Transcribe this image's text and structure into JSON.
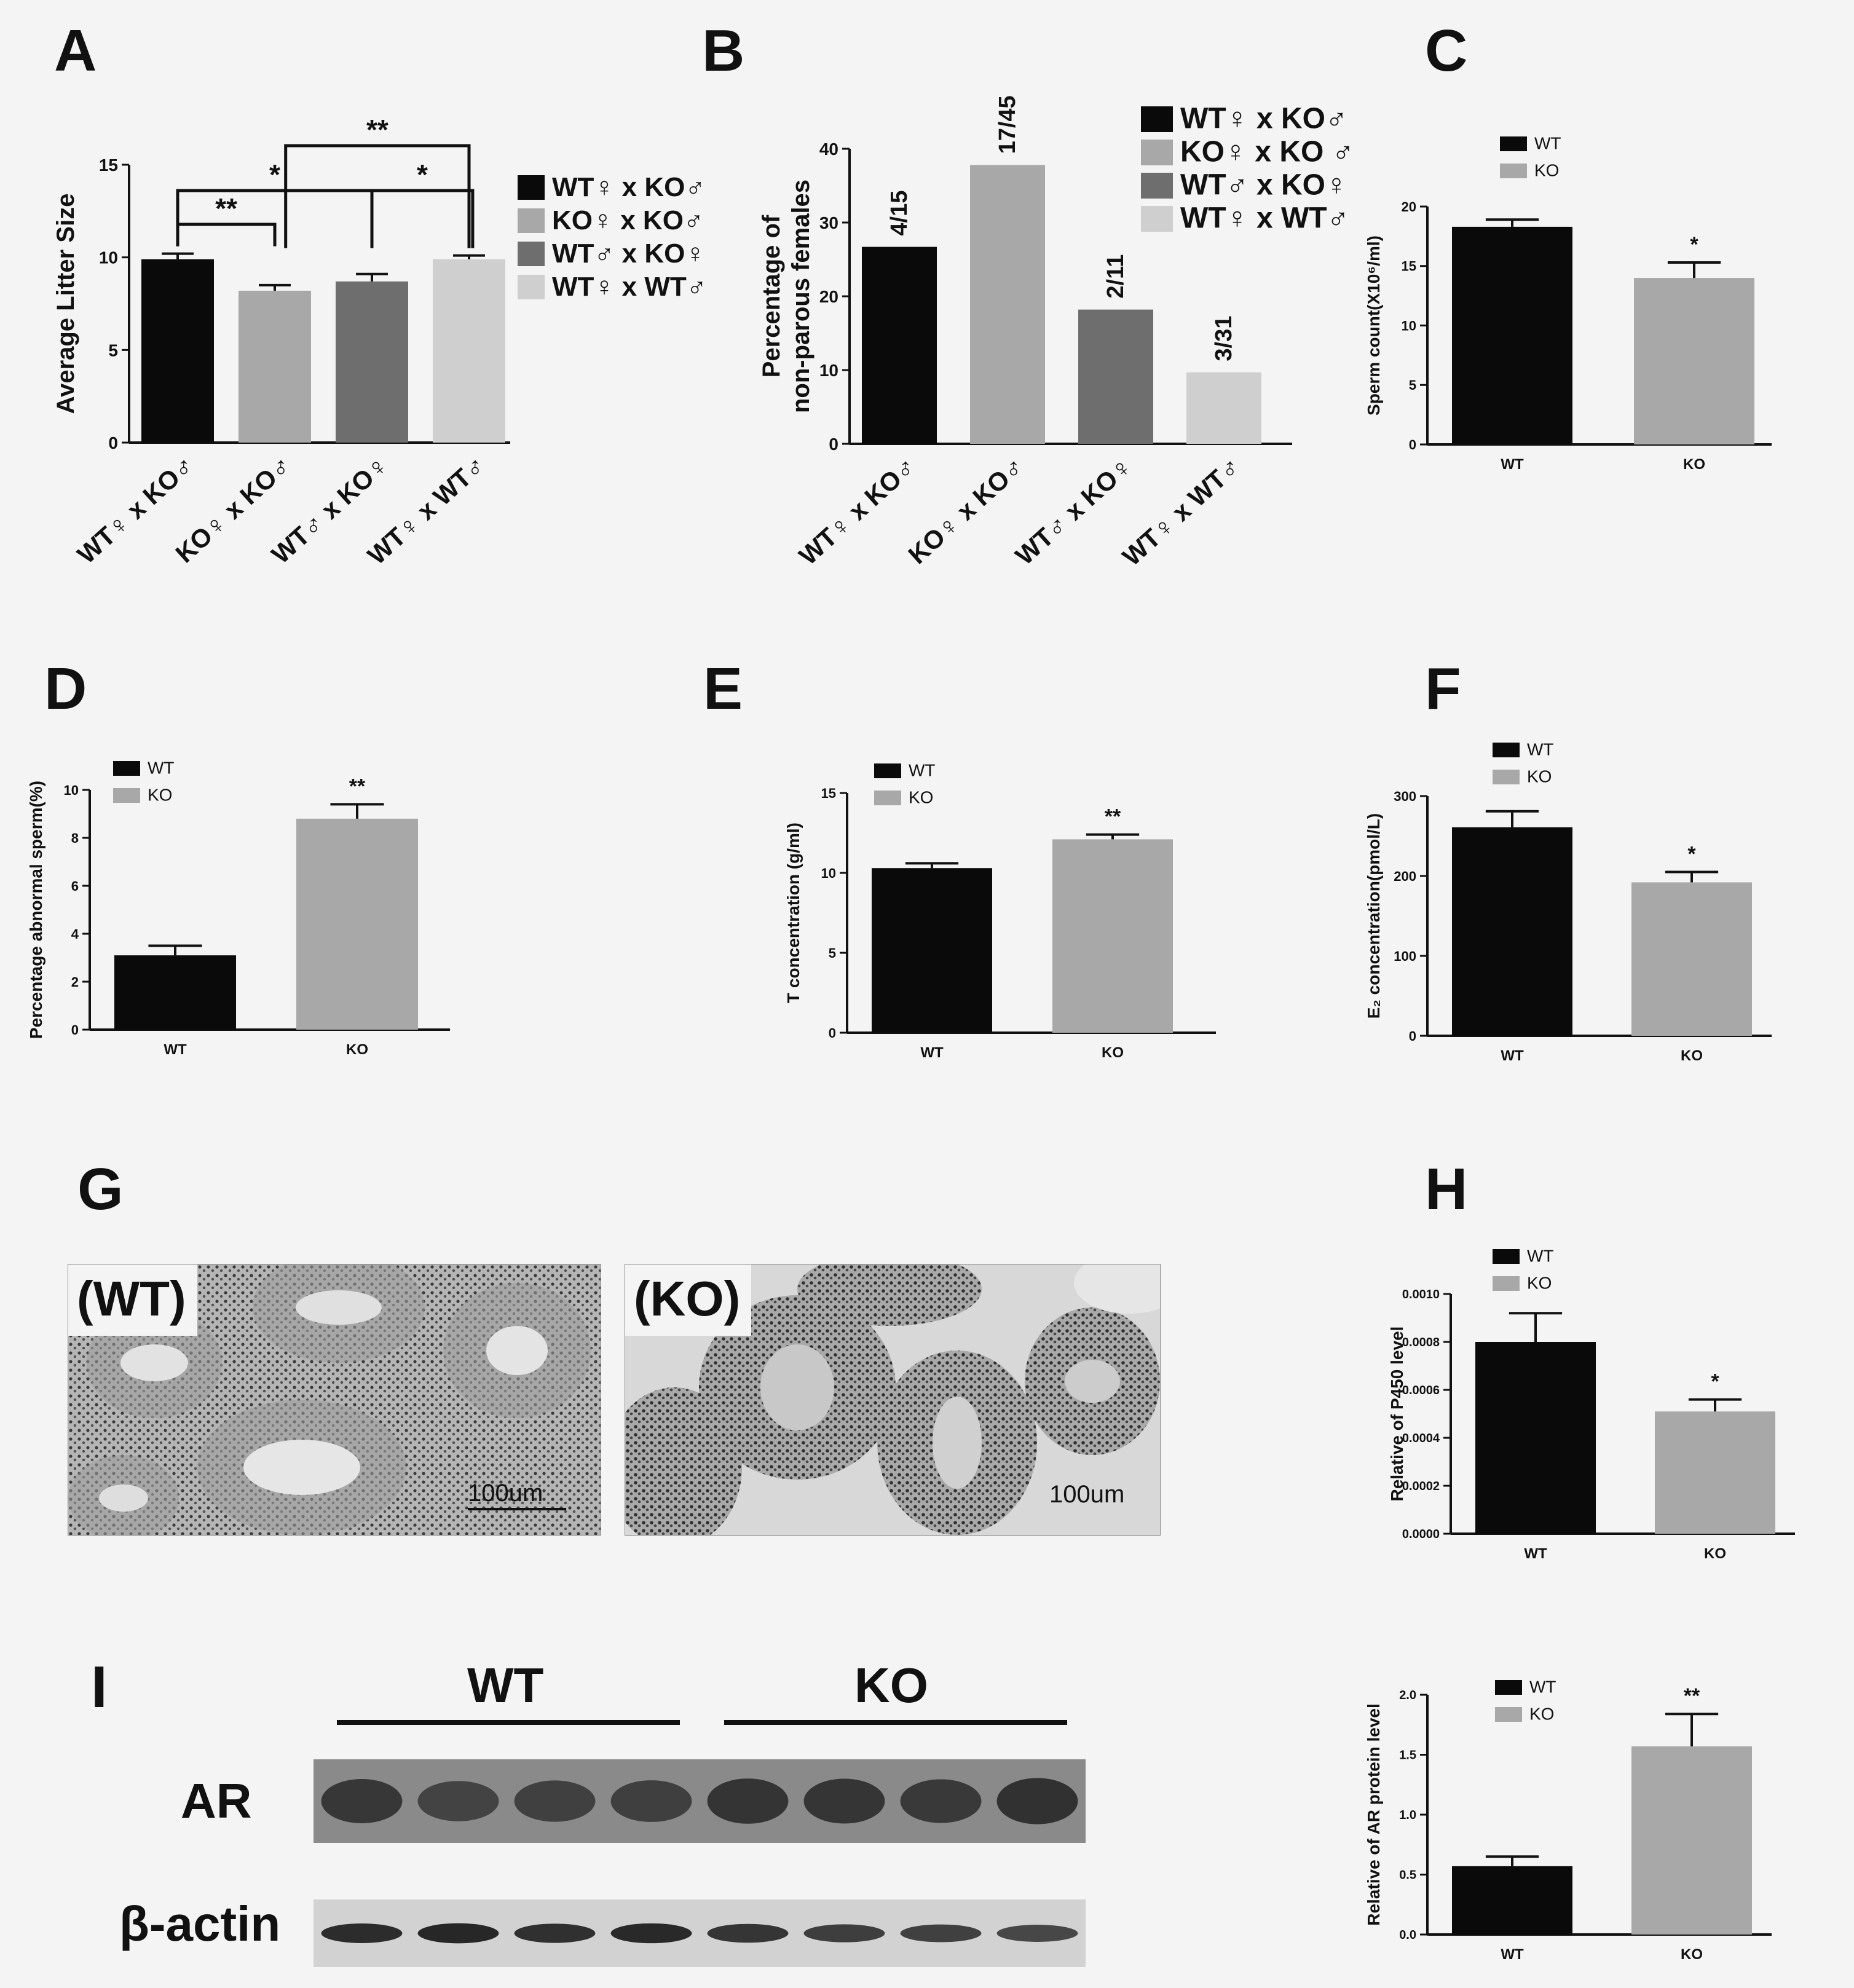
{
  "panel_labels": {
    "A": "A",
    "B": "B",
    "C": "C",
    "D": "D",
    "E": "E",
    "F": "F",
    "G": "G",
    "H": "H",
    "I": "I"
  },
  "colors": {
    "black": "#0a0a0a",
    "light": "#a8a8a8",
    "dark": "#6e6e6e",
    "vlight": "#cfcfcf"
  },
  "chart_data": [
    {
      "id": "A",
      "type": "bar",
      "categories": [
        "WT♀ x KO♂",
        "KO♀ x KO♂",
        "WT♂ x KO♀",
        "WT♀ x WT♂"
      ],
      "values": [
        9.9,
        8.2,
        8.7,
        9.9
      ],
      "errors": [
        0.3,
        0.3,
        0.4,
        0.2
      ],
      "colors": [
        "#0a0a0a",
        "#a8a8a8",
        "#6e6e6e",
        "#cfcfcf"
      ],
      "ylabel": "Average Litter Size",
      "ylim": [
        0,
        15
      ],
      "yticks": [
        "0",
        "5",
        "10",
        "15"
      ],
      "legend": [
        "WT♀ x KO♂",
        "KO♀ x KO♂",
        "WT♂ x KO♀",
        "WT♀ x WT♂"
      ],
      "brackets": [
        {
          "from": 0,
          "to": 1,
          "label": "**",
          "level": 0
        },
        {
          "from": 0,
          "to": 2,
          "label": "*",
          "level": 1
        },
        {
          "from": 2,
          "to": 3,
          "label": "*",
          "level": 1
        },
        {
          "from": 1,
          "to": 3,
          "label": "**",
          "level": 2
        }
      ]
    },
    {
      "id": "B",
      "type": "bar",
      "categories": [
        "WT♀ x KO♂",
        "KO♀ x KO♂",
        "WT♂ x KO♀",
        "WT♀ x WT♂"
      ],
      "values": [
        26.7,
        37.8,
        18.2,
        9.7
      ],
      "bar_labels": [
        "4/15",
        "17/45",
        "2/11",
        "3/31"
      ],
      "colors": [
        "#0a0a0a",
        "#a8a8a8",
        "#6e6e6e",
        "#cfcfcf"
      ],
      "ylabel_lines": [
        "Percentage of",
        "non-parous females"
      ],
      "ylim": [
        0,
        40
      ],
      "yticks": [
        "0",
        "10",
        "20",
        "30",
        "40"
      ],
      "legend": [
        "WT♀ x KO♂",
        "KO♀ x KO ♂",
        "WT♂ x KO♀",
        "WT♀ x WT♂"
      ]
    },
    {
      "id": "C",
      "type": "bar",
      "categories": [
        "WT",
        "KO"
      ],
      "values": [
        18.3,
        14.0
      ],
      "errors": [
        0.6,
        1.3
      ],
      "sig": [
        "",
        "*"
      ],
      "colors": [
        "#0a0a0a",
        "#a8a8a8"
      ],
      "ylabel": "Sperm count(X10⁶/ml)",
      "ylim": [
        0,
        20
      ],
      "yticks": [
        "0",
        "5",
        "10",
        "15",
        "20"
      ],
      "legend": [
        "WT",
        "KO"
      ]
    },
    {
      "id": "D",
      "type": "bar",
      "categories": [
        "WT",
        "KO"
      ],
      "values": [
        3.1,
        8.8
      ],
      "errors": [
        0.4,
        0.6
      ],
      "sig": [
        "",
        "**"
      ],
      "colors": [
        "#0a0a0a",
        "#a8a8a8"
      ],
      "ylabel": "Percentage abnormal sperm(%)",
      "ylim": [
        0,
        10
      ],
      "yticks": [
        "0",
        "2",
        "4",
        "6",
        "8",
        "10"
      ],
      "legend": [
        "WT",
        "KO"
      ]
    },
    {
      "id": "E",
      "type": "bar",
      "categories": [
        "WT",
        "KO"
      ],
      "values": [
        10.3,
        12.1
      ],
      "errors": [
        0.3,
        0.3
      ],
      "sig": [
        "",
        "**"
      ],
      "colors": [
        "#0a0a0a",
        "#a8a8a8"
      ],
      "ylabel": "T concentration (g/ml)",
      "ylim": [
        0,
        15
      ],
      "yticks": [
        "0",
        "5",
        "10",
        "15"
      ],
      "legend": [
        "WT",
        "KO"
      ]
    },
    {
      "id": "F",
      "type": "bar",
      "categories": [
        "WT",
        "KO"
      ],
      "values": [
        261,
        192
      ],
      "errors": [
        20,
        13
      ],
      "sig": [
        "",
        "*"
      ],
      "colors": [
        "#0a0a0a",
        "#a8a8a8"
      ],
      "ylabel": "E₂ concentration(pmol/L)",
      "ylim": [
        0,
        300
      ],
      "yticks": [
        "0",
        "100",
        "200",
        "300"
      ],
      "legend": [
        "WT",
        "KO"
      ]
    },
    {
      "id": "H",
      "type": "bar",
      "categories": [
        "WT",
        "KO"
      ],
      "values": [
        0.0008,
        0.00051
      ],
      "errors": [
        0.00012,
        5e-05
      ],
      "sig": [
        "",
        "*"
      ],
      "colors": [
        "#0a0a0a",
        "#a8a8a8"
      ],
      "ylabel": "Relative of P450 level",
      "ylim": [
        0,
        0.001
      ],
      "yticks": [
        "0.0000",
        "0.0002",
        "0.0004",
        "0.0006",
        "0.0008",
        "0.0010"
      ],
      "legend": [
        "WT",
        "KO"
      ]
    },
    {
      "id": "I",
      "type": "bar",
      "categories": [
        "WT",
        "KO"
      ],
      "values": [
        0.57,
        1.57
      ],
      "errors": [
        0.08,
        0.27
      ],
      "sig": [
        "",
        "**"
      ],
      "colors": [
        "#0a0a0a",
        "#a8a8a8"
      ],
      "ylabel": "Relative of AR protein level",
      "ylim": [
        0,
        2
      ],
      "yticks": [
        "0.0",
        "0.5",
        "1.0",
        "1.5",
        "2.0"
      ],
      "legend": [
        "WT",
        "KO"
      ]
    }
  ],
  "histology": {
    "wt_tag": "(WT)",
    "ko_tag": "(KO)",
    "scale_wt": "100um",
    "scale_ko": "100um"
  },
  "blot": {
    "group_wt": "WT",
    "group_ko": "KO",
    "row1": "AR",
    "row2": "β-actin",
    "ar_intensity": [
      0.75,
      0.55,
      0.6,
      0.62,
      0.8,
      0.78,
      0.72,
      0.85
    ],
    "actin_intensity": [
      0.85,
      0.9,
      0.8,
      0.88,
      0.75,
      0.65,
      0.62,
      0.55
    ]
  }
}
